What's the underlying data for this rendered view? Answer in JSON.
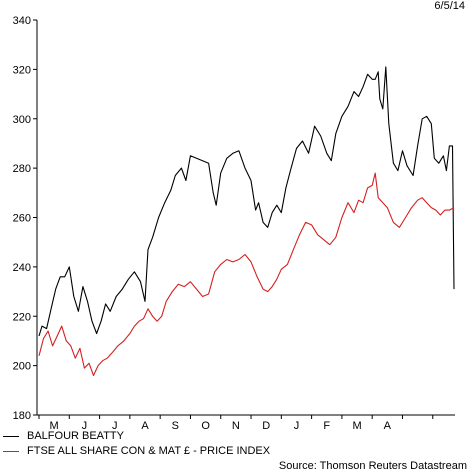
{
  "date_label": "6/5/14",
  "source": "Source: Thomson Reuters Datastream",
  "chart_data": {
    "type": "line",
    "ylim": [
      180,
      340
    ],
    "yticks": [
      180,
      200,
      220,
      240,
      260,
      280,
      300,
      320,
      340
    ],
    "months": [
      "M",
      "J",
      "J",
      "A",
      "S",
      "O",
      "N",
      "D",
      "J",
      "F",
      "M",
      "A"
    ],
    "x_unit": "months since May 2013 (0 = start of May 2013)",
    "grid": false,
    "legend": "bottom-left",
    "series": [
      {
        "name": "BALFOUR BEATTY",
        "color": "#000000",
        "points": [
          [
            0.0,
            212
          ],
          [
            0.1,
            216
          ],
          [
            0.25,
            215
          ],
          [
            0.4,
            223
          ],
          [
            0.55,
            231
          ],
          [
            0.7,
            236
          ],
          [
            0.85,
            236
          ],
          [
            1.0,
            240
          ],
          [
            1.15,
            228
          ],
          [
            1.3,
            222
          ],
          [
            1.45,
            232
          ],
          [
            1.6,
            226
          ],
          [
            1.75,
            218
          ],
          [
            1.9,
            213
          ],
          [
            2.05,
            218
          ],
          [
            2.2,
            225
          ],
          [
            2.35,
            222
          ],
          [
            2.55,
            228
          ],
          [
            2.75,
            231
          ],
          [
            2.95,
            235
          ],
          [
            3.15,
            238
          ],
          [
            3.35,
            234
          ],
          [
            3.5,
            226
          ],
          [
            3.6,
            247
          ],
          [
            3.75,
            252
          ],
          [
            3.95,
            260
          ],
          [
            4.15,
            266
          ],
          [
            4.35,
            271
          ],
          [
            4.5,
            277
          ],
          [
            4.7,
            280
          ],
          [
            4.85,
            275
          ],
          [
            5.0,
            285
          ],
          [
            5.2,
            284
          ],
          [
            5.4,
            283
          ],
          [
            5.6,
            282
          ],
          [
            5.75,
            270
          ],
          [
            5.85,
            265
          ],
          [
            6.0,
            278
          ],
          [
            6.2,
            284
          ],
          [
            6.4,
            286
          ],
          [
            6.6,
            287
          ],
          [
            6.8,
            280
          ],
          [
            7.0,
            275
          ],
          [
            7.15,
            263
          ],
          [
            7.25,
            266
          ],
          [
            7.4,
            258
          ],
          [
            7.55,
            256
          ],
          [
            7.7,
            262
          ],
          [
            7.85,
            265
          ],
          [
            8.0,
            262
          ],
          [
            8.15,
            272
          ],
          [
            8.3,
            279
          ],
          [
            8.5,
            288
          ],
          [
            8.7,
            291
          ],
          [
            8.9,
            286
          ],
          [
            9.1,
            297
          ],
          [
            9.3,
            293
          ],
          [
            9.5,
            286
          ],
          [
            9.65,
            283
          ],
          [
            9.8,
            294
          ],
          [
            10.0,
            301
          ],
          [
            10.2,
            305
          ],
          [
            10.4,
            311
          ],
          [
            10.55,
            309
          ],
          [
            10.7,
            313
          ],
          [
            10.85,
            318
          ],
          [
            11.0,
            316
          ],
          [
            11.1,
            316
          ],
          [
            11.2,
            319
          ],
          [
            11.25,
            308
          ],
          [
            11.35,
            304
          ],
          [
            11.45,
            321
          ],
          [
            11.55,
            298
          ],
          [
            11.7,
            282
          ],
          [
            11.85,
            279
          ],
          [
            12.0,
            287
          ],
          [
            12.15,
            281
          ],
          [
            12.35,
            277
          ],
          [
            12.5,
            289
          ],
          [
            12.65,
            300
          ],
          [
            12.8,
            301
          ],
          [
            12.95,
            298
          ],
          [
            13.05,
            284
          ],
          [
            13.2,
            282
          ],
          [
            13.35,
            285
          ],
          [
            13.45,
            279
          ],
          [
            13.55,
            289
          ],
          [
            13.65,
            289
          ],
          [
            13.7,
            231
          ]
        ]
      },
      {
        "name": "FTSE ALL SHARE CON & MAT £ - PRICE INDEX",
        "color": "#d42020",
        "points": [
          [
            0.0,
            204
          ],
          [
            0.15,
            211
          ],
          [
            0.3,
            214
          ],
          [
            0.45,
            208
          ],
          [
            0.6,
            212
          ],
          [
            0.75,
            216
          ],
          [
            0.9,
            210
          ],
          [
            1.05,
            208
          ],
          [
            1.2,
            203
          ],
          [
            1.35,
            207
          ],
          [
            1.5,
            199
          ],
          [
            1.65,
            201
          ],
          [
            1.8,
            196
          ],
          [
            1.95,
            200
          ],
          [
            2.1,
            202
          ],
          [
            2.25,
            203
          ],
          [
            2.4,
            205
          ],
          [
            2.6,
            208
          ],
          [
            2.8,
            210
          ],
          [
            3.0,
            213
          ],
          [
            3.15,
            216
          ],
          [
            3.3,
            218
          ],
          [
            3.45,
            219
          ],
          [
            3.6,
            223
          ],
          [
            3.75,
            220
          ],
          [
            3.9,
            218
          ],
          [
            4.05,
            220
          ],
          [
            4.2,
            226
          ],
          [
            4.4,
            230
          ],
          [
            4.6,
            233
          ],
          [
            4.8,
            232
          ],
          [
            5.0,
            234
          ],
          [
            5.2,
            231
          ],
          [
            5.4,
            228
          ],
          [
            5.6,
            229
          ],
          [
            5.8,
            238
          ],
          [
            6.0,
            241
          ],
          [
            6.2,
            243
          ],
          [
            6.4,
            242
          ],
          [
            6.6,
            243
          ],
          [
            6.8,
            245
          ],
          [
            7.0,
            242
          ],
          [
            7.2,
            236
          ],
          [
            7.4,
            231
          ],
          [
            7.55,
            230
          ],
          [
            7.7,
            232
          ],
          [
            7.85,
            235
          ],
          [
            8.0,
            239
          ],
          [
            8.2,
            241
          ],
          [
            8.4,
            247
          ],
          [
            8.6,
            253
          ],
          [
            8.8,
            258
          ],
          [
            9.0,
            257
          ],
          [
            9.2,
            253
          ],
          [
            9.4,
            251
          ],
          [
            9.6,
            249
          ],
          [
            9.8,
            252
          ],
          [
            10.0,
            260
          ],
          [
            10.2,
            266
          ],
          [
            10.4,
            262
          ],
          [
            10.55,
            267
          ],
          [
            10.7,
            266
          ],
          [
            10.85,
            272
          ],
          [
            11.0,
            273
          ],
          [
            11.1,
            278
          ],
          [
            11.2,
            268
          ],
          [
            11.35,
            266
          ],
          [
            11.5,
            264
          ],
          [
            11.7,
            258
          ],
          [
            11.9,
            256
          ],
          [
            12.1,
            260
          ],
          [
            12.3,
            264
          ],
          [
            12.5,
            267
          ],
          [
            12.65,
            268
          ],
          [
            12.8,
            266
          ],
          [
            12.95,
            264
          ],
          [
            13.1,
            263
          ],
          [
            13.25,
            261
          ],
          [
            13.4,
            263
          ],
          [
            13.55,
            263
          ],
          [
            13.7,
            264
          ]
        ]
      }
    ]
  }
}
